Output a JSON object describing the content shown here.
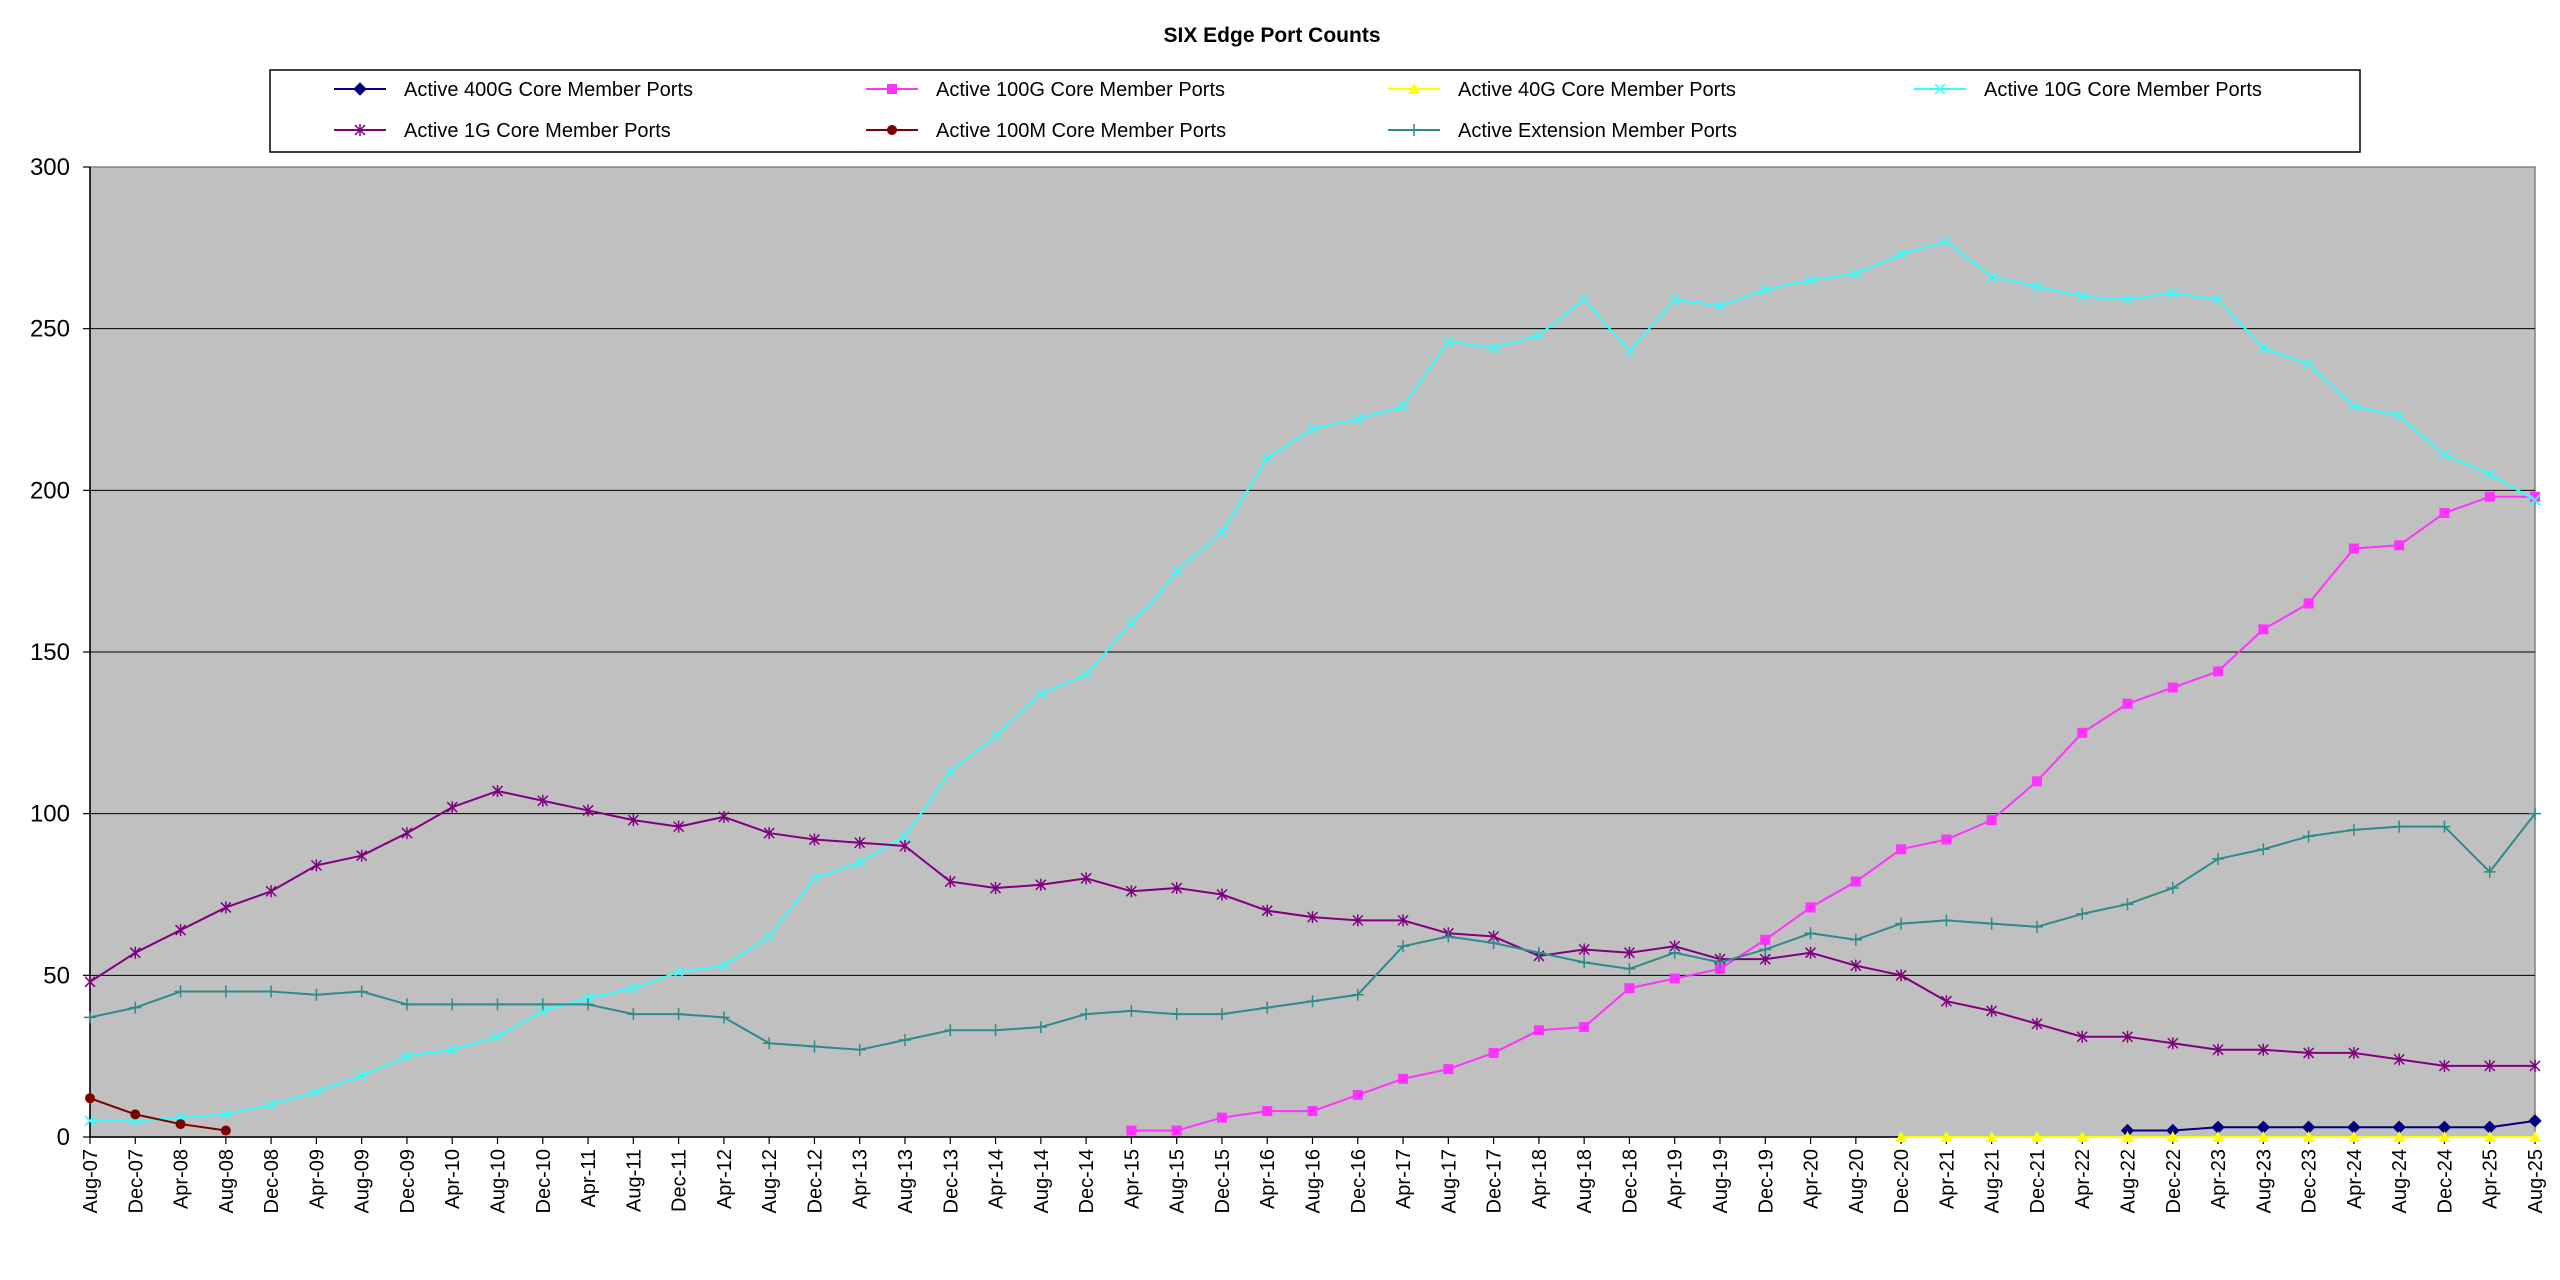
{
  "chart_data": {
    "type": "line",
    "title": "SIX Edge Port Counts",
    "xlabel": "",
    "ylabel": "",
    "ylim": [
      0,
      300
    ],
    "yticks": [
      0,
      50,
      100,
      150,
      200,
      250,
      300
    ],
    "grid": true,
    "legend_position": "top",
    "plot_background": "#c0c0c0",
    "categories": [
      "Aug-07",
      "Dec-07",
      "Apr-08",
      "Aug-08",
      "Dec-08",
      "Apr-09",
      "Aug-09",
      "Dec-09",
      "Apr-10",
      "Aug-10",
      "Dec-10",
      "Apr-11",
      "Aug-11",
      "Dec-11",
      "Apr-12",
      "Aug-12",
      "Dec-12",
      "Apr-13",
      "Aug-13",
      "Dec-13",
      "Apr-14",
      "Aug-14",
      "Dec-14",
      "Apr-15",
      "Aug-15",
      "Dec-15",
      "Apr-16",
      "Aug-16",
      "Dec-16",
      "Apr-17",
      "Aug-17",
      "Dec-17",
      "Apr-18",
      "Aug-18",
      "Dec-18",
      "Apr-19",
      "Aug-19",
      "Dec-19",
      "Apr-20",
      "Aug-20",
      "Dec-20",
      "Apr-21",
      "Aug-21",
      "Dec-21",
      "Apr-22",
      "Aug-22",
      "Dec-22",
      "Apr-23",
      "Aug-23",
      "Dec-23",
      "Apr-24",
      "Aug-24",
      "Dec-24",
      "Apr-25",
      "Aug-25"
    ],
    "x_intermediate": true,
    "series": [
      {
        "name": "Active 400G Core Member Ports",
        "color": "#000080",
        "marker": "diamond",
        "points": [
          [
            45,
            2
          ],
          [
            46,
            2
          ],
          [
            47,
            3
          ],
          [
            48,
            3
          ],
          [
            49,
            3
          ],
          [
            50,
            3
          ],
          [
            51,
            3
          ],
          [
            52,
            3
          ],
          [
            53,
            3
          ],
          [
            54,
            5
          ]
        ]
      },
      {
        "name": "Active 100G Core Member Ports",
        "color": "#ff33ff",
        "marker": "square",
        "points": [
          [
            23,
            2
          ],
          [
            24,
            2
          ],
          [
            25,
            6
          ],
          [
            26,
            8
          ],
          [
            27,
            8
          ],
          [
            28,
            13
          ],
          [
            29,
            18
          ],
          [
            30,
            21
          ],
          [
            31,
            26
          ],
          [
            32,
            33
          ],
          [
            33,
            34
          ],
          [
            34,
            46
          ],
          [
            35,
            49
          ],
          [
            36,
            52
          ],
          [
            37,
            61
          ],
          [
            38,
            71
          ],
          [
            39,
            79
          ],
          [
            40,
            89
          ],
          [
            41,
            92
          ],
          [
            42,
            98
          ],
          [
            43,
            110
          ],
          [
            44,
            125
          ],
          [
            45,
            134
          ],
          [
            46,
            139
          ],
          [
            47,
            144
          ],
          [
            48,
            157
          ],
          [
            49,
            165
          ],
          [
            50,
            182
          ],
          [
            51,
            183
          ],
          [
            52,
            193
          ],
          [
            53,
            198
          ],
          [
            54,
            198
          ]
        ]
      },
      {
        "name": "Active 40G Core Member Ports",
        "color": "#ffff00",
        "marker": "triangle",
        "points": [
          [
            40,
            0
          ],
          [
            41,
            0
          ],
          [
            42,
            0
          ],
          [
            43,
            0
          ],
          [
            44,
            0
          ],
          [
            45,
            0
          ],
          [
            46,
            0
          ],
          [
            47,
            0
          ],
          [
            48,
            0
          ],
          [
            49,
            0
          ],
          [
            50,
            0
          ],
          [
            51,
            0
          ],
          [
            52,
            0
          ],
          [
            53,
            0
          ],
          [
            54,
            0
          ]
        ]
      },
      {
        "name": "Active 10G Core Member Ports",
        "color": "#33ffff",
        "marker": "x",
        "points": [
          [
            0,
            5
          ],
          [
            1,
            5
          ],
          [
            2,
            6
          ],
          [
            3,
            7
          ],
          [
            4,
            10
          ],
          [
            5,
            14
          ],
          [
            6,
            19
          ],
          [
            7,
            25
          ],
          [
            8,
            27
          ],
          [
            9,
            31
          ],
          [
            10,
            39
          ],
          [
            11,
            43
          ],
          [
            12,
            46
          ],
          [
            13,
            51
          ],
          [
            14,
            53
          ],
          [
            15,
            62
          ],
          [
            16,
            80
          ],
          [
            17,
            85
          ],
          [
            18,
            93
          ],
          [
            19,
            113
          ],
          [
            20,
            124
          ],
          [
            21,
            137
          ],
          [
            22,
            143
          ],
          [
            23,
            159
          ],
          [
            23.5,
            166
          ],
          [
            24,
            175
          ],
          [
            25,
            187
          ],
          [
            26,
            210
          ],
          [
            27,
            219
          ],
          [
            28,
            222
          ],
          [
            29,
            226
          ],
          [
            30,
            246
          ],
          [
            31,
            244
          ],
          [
            32,
            248
          ],
          [
            33,
            259
          ],
          [
            34,
            243
          ],
          [
            35,
            259
          ],
          [
            36,
            257
          ],
          [
            37,
            262
          ],
          [
            38,
            265
          ],
          [
            39,
            267
          ],
          [
            40,
            273
          ],
          [
            41,
            277
          ],
          [
            42,
            266
          ],
          [
            43,
            263
          ],
          [
            44,
            260
          ],
          [
            45,
            259
          ],
          [
            46,
            261
          ],
          [
            47,
            259
          ],
          [
            48,
            244
          ],
          [
            49,
            239
          ],
          [
            50,
            226
          ],
          [
            51,
            223
          ],
          [
            52,
            211
          ],
          [
            53,
            205
          ],
          [
            54,
            197
          ]
        ]
      },
      {
        "name": "Active 1G Core Member Ports",
        "color": "#800080",
        "marker": "star",
        "points": [
          [
            0,
            48
          ],
          [
            1,
            57
          ],
          [
            2,
            64
          ],
          [
            3,
            71
          ],
          [
            4,
            76
          ],
          [
            5,
            84
          ],
          [
            6,
            87
          ],
          [
            7,
            94
          ],
          [
            8,
            102
          ],
          [
            9,
            107
          ],
          [
            10,
            104
          ],
          [
            11,
            101
          ],
          [
            12,
            98
          ],
          [
            13,
            96
          ],
          [
            14,
            99
          ],
          [
            15,
            94
          ],
          [
            16,
            92
          ],
          [
            17,
            91
          ],
          [
            18,
            90
          ],
          [
            19,
            79
          ],
          [
            20,
            77
          ],
          [
            21,
            78
          ],
          [
            22,
            80
          ],
          [
            23,
            76
          ],
          [
            24,
            77
          ],
          [
            25,
            75
          ],
          [
            26,
            70
          ],
          [
            27,
            68
          ],
          [
            28,
            67
          ],
          [
            29,
            67
          ],
          [
            30,
            63
          ],
          [
            31,
            62
          ],
          [
            32,
            56
          ],
          [
            33,
            58
          ],
          [
            34,
            57
          ],
          [
            35,
            59
          ],
          [
            36,
            55
          ],
          [
            37,
            55
          ],
          [
            38,
            57
          ],
          [
            39,
            53
          ],
          [
            40,
            50
          ],
          [
            41,
            42
          ],
          [
            42,
            39
          ],
          [
            43,
            35
          ],
          [
            44,
            31
          ],
          [
            45,
            31
          ],
          [
            46,
            29
          ],
          [
            47,
            27
          ],
          [
            48,
            27
          ],
          [
            49,
            26
          ],
          [
            50,
            26
          ],
          [
            51,
            24
          ],
          [
            52,
            22
          ],
          [
            53,
            22
          ],
          [
            54,
            22
          ]
        ]
      },
      {
        "name": "Active 100M Core Member Ports",
        "color": "#800000",
        "marker": "circle",
        "points": [
          [
            0,
            12
          ],
          [
            1,
            7
          ],
          [
            2,
            4
          ],
          [
            3,
            2
          ]
        ]
      },
      {
        "name": "Active Extension Member Ports",
        "color": "#2e8b8b",
        "marker": "plus",
        "points": [
          [
            0,
            37
          ],
          [
            1,
            40
          ],
          [
            2,
            45
          ],
          [
            3,
            45
          ],
          [
            4,
            45
          ],
          [
            5,
            44
          ],
          [
            6,
            45
          ],
          [
            7,
            41
          ],
          [
            8,
            41
          ],
          [
            9,
            41
          ],
          [
            10,
            41
          ],
          [
            11,
            41
          ],
          [
            12,
            38
          ],
          [
            13,
            38
          ],
          [
            14,
            37
          ],
          [
            15,
            29
          ],
          [
            16,
            28
          ],
          [
            17,
            27
          ],
          [
            18,
            30
          ],
          [
            19,
            33
          ],
          [
            20,
            33
          ],
          [
            21,
            34
          ],
          [
            22,
            38
          ],
          [
            23,
            39
          ],
          [
            24,
            38
          ],
          [
            25,
            38
          ],
          [
            26,
            40
          ],
          [
            27,
            42
          ],
          [
            28,
            44
          ],
          [
            29,
            59
          ],
          [
            30,
            62
          ],
          [
            31,
            60
          ],
          [
            32,
            57
          ],
          [
            33,
            54
          ],
          [
            34,
            52
          ],
          [
            35,
            57
          ],
          [
            36,
            54
          ],
          [
            37,
            58
          ],
          [
            38,
            63
          ],
          [
            39,
            61
          ],
          [
            40,
            66
          ],
          [
            41,
            67
          ],
          [
            42,
            66
          ],
          [
            43,
            65
          ],
          [
            44,
            69
          ],
          [
            45,
            72
          ],
          [
            46,
            77
          ],
          [
            47,
            86
          ],
          [
            48,
            89
          ],
          [
            49,
            93
          ],
          [
            50,
            95
          ],
          [
            51,
            96
          ],
          [
            52,
            96
          ],
          [
            53,
            82
          ],
          [
            54,
            100
          ]
        ]
      }
    ]
  }
}
